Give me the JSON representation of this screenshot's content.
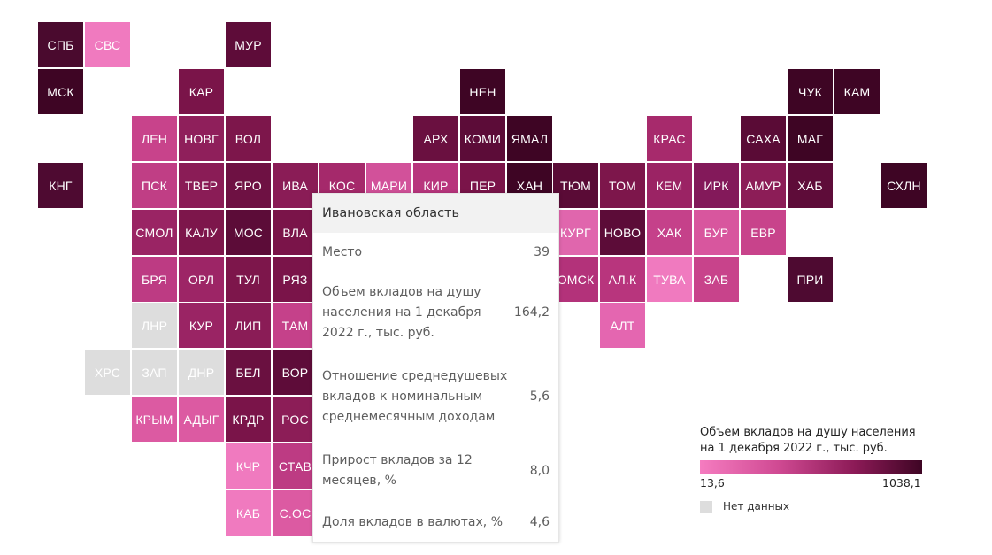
{
  "colors": {
    "nodata": "#dddddd",
    "scale_low": "#f57cc0",
    "scale_high": "#3e0524"
  },
  "regions": [
    {
      "label": "СПБ",
      "col": 0,
      "row": 0,
      "color": "#4a0a2e"
    },
    {
      "label": "СВС",
      "col": 1,
      "row": 0,
      "color": "#f07abf"
    },
    {
      "label": "МУР",
      "col": 4,
      "row": 0,
      "color": "#5e0c39"
    },
    {
      "label": "МСК",
      "col": 0,
      "row": 1,
      "color": "#3e0524"
    },
    {
      "label": "КАР",
      "col": 3,
      "row": 1,
      "color": "#7a1449"
    },
    {
      "label": "НЕН",
      "col": 9,
      "row": 1,
      "color": "#3e0524"
    },
    {
      "label": "ЧУК",
      "col": 16,
      "row": 1,
      "color": "#3e0524"
    },
    {
      "label": "КАМ",
      "col": 17,
      "row": 1,
      "color": "#3e0524"
    },
    {
      "label": "ЛЕН",
      "col": 2,
      "row": 2,
      "color": "#c8438b"
    },
    {
      "label": "НОВГ",
      "col": 3,
      "row": 2,
      "color": "#8f1f5b"
    },
    {
      "label": "ВОЛ",
      "col": 4,
      "row": 2,
      "color": "#7d164b"
    },
    {
      "label": "АРХ",
      "col": 8,
      "row": 2,
      "color": "#6a1040"
    },
    {
      "label": "КОМИ",
      "col": 9,
      "row": 2,
      "color": "#5c0c38"
    },
    {
      "label": "ЯМАЛ",
      "col": 10,
      "row": 2,
      "color": "#3e0524"
    },
    {
      "label": "КРАС",
      "col": 13,
      "row": 2,
      "color": "#a72a6c"
    },
    {
      "label": "САХА",
      "col": 15,
      "row": 2,
      "color": "#5a0b36"
    },
    {
      "label": "МАГ",
      "col": 16,
      "row": 2,
      "color": "#3e0524"
    },
    {
      "label": "КНГ",
      "col": 0,
      "row": 3,
      "color": "#4e0a31"
    },
    {
      "label": "ПСК",
      "col": 2,
      "row": 3,
      "color": "#c03e85"
    },
    {
      "label": "ТВЕР",
      "col": 3,
      "row": 3,
      "color": "#8a1c56"
    },
    {
      "label": "ЯРО",
      "col": 4,
      "row": 3,
      "color": "#6e1143"
    },
    {
      "label": "ИВА",
      "col": 5,
      "row": 3,
      "color": "#8a1c56"
    },
    {
      "label": "КОС",
      "col": 6,
      "row": 3,
      "color": "#a5296b"
    },
    {
      "label": "МАРИ",
      "col": 7,
      "row": 3,
      "color": "#d2519a"
    },
    {
      "label": "КИР",
      "col": 8,
      "row": 3,
      "color": "#b8357d"
    },
    {
      "label": "ПЕР",
      "col": 9,
      "row": 3,
      "color": "#7a1449"
    },
    {
      "label": "ХАН",
      "col": 10,
      "row": 3,
      "color": "#3e0524"
    },
    {
      "label": "ТЮМ",
      "col": 11,
      "row": 3,
      "color": "#5a0b36"
    },
    {
      "label": "ТОМ",
      "col": 12,
      "row": 3,
      "color": "#7d164b"
    },
    {
      "label": "КЕМ",
      "col": 13,
      "row": 3,
      "color": "#9b2364"
    },
    {
      "label": "ИРК",
      "col": 14,
      "row": 3,
      "color": "#83195a"
    },
    {
      "label": "АМУР",
      "col": 15,
      "row": 3,
      "color": "#8c1d57"
    },
    {
      "label": "ХАБ",
      "col": 16,
      "row": 3,
      "color": "#5e0c39"
    },
    {
      "label": "СХЛН",
      "col": 18,
      "row": 3,
      "color": "#3e0524"
    },
    {
      "label": "СМОЛ",
      "col": 2,
      "row": 4,
      "color": "#9a2464"
    },
    {
      "label": "КАЛУ",
      "col": 3,
      "row": 4,
      "color": "#7d164b"
    },
    {
      "label": "МОС",
      "col": 4,
      "row": 4,
      "color": "#5c0c38"
    },
    {
      "label": "ВЛА",
      "col": 5,
      "row": 4,
      "color": "#7a1449"
    },
    {
      "label": "КУРГ",
      "col": 11,
      "row": 4,
      "color": "#e066ad"
    },
    {
      "label": "НОВО",
      "col": 12,
      "row": 4,
      "color": "#5c0c38"
    },
    {
      "label": "ХАК",
      "col": 13,
      "row": 4,
      "color": "#c5418a"
    },
    {
      "label": "БУР",
      "col": 14,
      "row": 4,
      "color": "#d8569e"
    },
    {
      "label": "ЕВР",
      "col": 15,
      "row": 4,
      "color": "#c8438b"
    },
    {
      "label": "БРЯ",
      "col": 2,
      "row": 5,
      "color": "#bd3b83"
    },
    {
      "label": "ОРЛ",
      "col": 3,
      "row": 5,
      "color": "#9d2566"
    },
    {
      "label": "ТУЛ",
      "col": 4,
      "row": 5,
      "color": "#7d164b"
    },
    {
      "label": "РЯЗ",
      "col": 5,
      "row": 5,
      "color": "#7a1449"
    },
    {
      "label": "ОМСК",
      "col": 11,
      "row": 5,
      "color": "#b3327a"
    },
    {
      "label": "АЛ.К",
      "col": 12,
      "row": 5,
      "color": "#b8357d"
    },
    {
      "label": "ТУВА",
      "col": 13,
      "row": 5,
      "color": "#f07abf"
    },
    {
      "label": "ЗАБ",
      "col": 14,
      "row": 5,
      "color": "#c8438b"
    },
    {
      "label": "ПРИ",
      "col": 16,
      "row": 5,
      "color": "#4e0a31"
    },
    {
      "label": "ЛНР",
      "col": 2,
      "row": 6,
      "color": "#dddddd"
    },
    {
      "label": "КУР",
      "col": 3,
      "row": 6,
      "color": "#9a2464"
    },
    {
      "label": "ЛИП",
      "col": 4,
      "row": 6,
      "color": "#8a1c56"
    },
    {
      "label": "ТАМ",
      "col": 5,
      "row": 6,
      "color": "#c5418a"
    },
    {
      "label": "АЛТ",
      "col": 12,
      "row": 6,
      "color": "#e466b0"
    },
    {
      "label": "ХРС",
      "col": 1,
      "row": 7,
      "color": "#dddddd"
    },
    {
      "label": "ЗАП",
      "col": 2,
      "row": 7,
      "color": "#dddddd"
    },
    {
      "label": "ДНР",
      "col": 3,
      "row": 7,
      "color": "#dddddd"
    },
    {
      "label": "БЕЛ",
      "col": 4,
      "row": 7,
      "color": "#6a1040"
    },
    {
      "label": "ВОР",
      "col": 5,
      "row": 7,
      "color": "#5e0c39"
    },
    {
      "label": "КРЫМ",
      "col": 2,
      "row": 8,
      "color": "#dc5aa2"
    },
    {
      "label": "АДЫГ",
      "col": 3,
      "row": 8,
      "color": "#dc5aa2"
    },
    {
      "label": "КРДР",
      "col": 4,
      "row": 8,
      "color": "#7a1449"
    },
    {
      "label": "РОС",
      "col": 5,
      "row": 8,
      "color": "#8c1d57"
    },
    {
      "label": "КЧР",
      "col": 4,
      "row": 9,
      "color": "#f07abf"
    },
    {
      "label": "СТАВ",
      "col": 5,
      "row": 9,
      "color": "#bd3b83"
    },
    {
      "label": "КАБ",
      "col": 4,
      "row": 10,
      "color": "#f07abf"
    },
    {
      "label": "С.ОС",
      "col": 5,
      "row": 10,
      "color": "#dc5aa2"
    }
  ],
  "tooltip": {
    "title": "Ивановская область",
    "rows": [
      {
        "label": "Место",
        "value": "39"
      },
      {
        "label": "Объем вкладов на душу населения на 1 декабря 2022 г., тыс. руб.",
        "value": "164,2"
      },
      {
        "label": "Отношение среднедушевых вкладов к номинальным среднемесячным доходам",
        "value": "5,6"
      },
      {
        "label": "Прирост вкладов за 12 месяцев, %",
        "value": "8,0"
      },
      {
        "label": "Доля вкладов в валютах, %",
        "value": "4,6"
      }
    ]
  },
  "legend": {
    "title": "Объем вкладов на душу населения на 1 декабря 2022 г., тыс. руб.",
    "min": "13,6",
    "max": "1038,1",
    "nodata_label": "Нет данных"
  }
}
